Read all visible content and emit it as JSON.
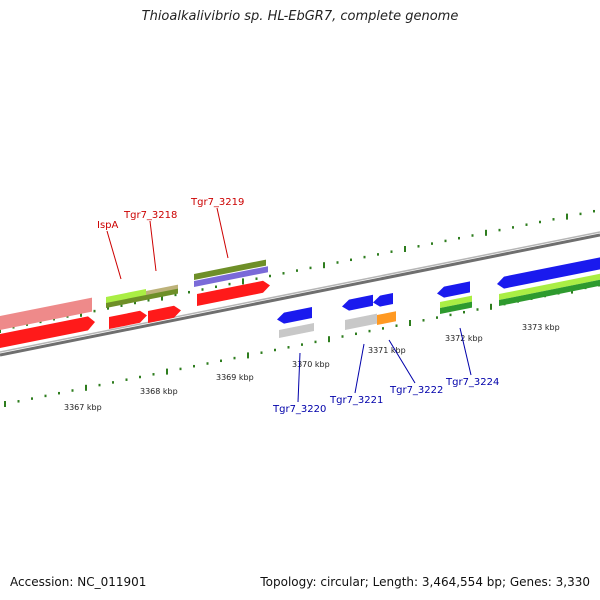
{
  "title": "Thioalkalivibrio sp. HL-EbGR7, complete genome",
  "footer": {
    "accession": "Accession: NC_011901",
    "topology": "Topology: circular; Length: 3,464,554 bp; Genes: 3,330"
  },
  "scale": {
    "unit": "kbp",
    "labels": [
      "3367 kbp",
      "3368 kbp",
      "3369 kbp",
      "3370 kbp",
      "3371 kbp",
      "3372 kbp",
      "3373 kbp"
    ]
  },
  "genes": {
    "forward": [
      "IspA",
      "Tgr7_3218",
      "Tgr7_3219"
    ],
    "reverse": [
      "Tgr7_3220",
      "Tgr7_3221",
      "Tgr7_3222",
      "Tgr7_3224"
    ]
  },
  "colors": {
    "forward_label": "#cc0000",
    "reverse_label": "#0000aa",
    "tick": "#2e7d1e",
    "backbone": "#8a8a8a",
    "cds_red": "#ff1a1a",
    "cds_blue": "#1a1aee",
    "cds_pink": "#ee8a8a",
    "cds_gray": "#c8c8c8",
    "cds_orange": "#ff9922",
    "lime": "#aaee44",
    "olive": "#6e8f28",
    "khaki": "#bdb27a",
    "green": "#2e9a2e",
    "purple": "#7a6ad8"
  }
}
